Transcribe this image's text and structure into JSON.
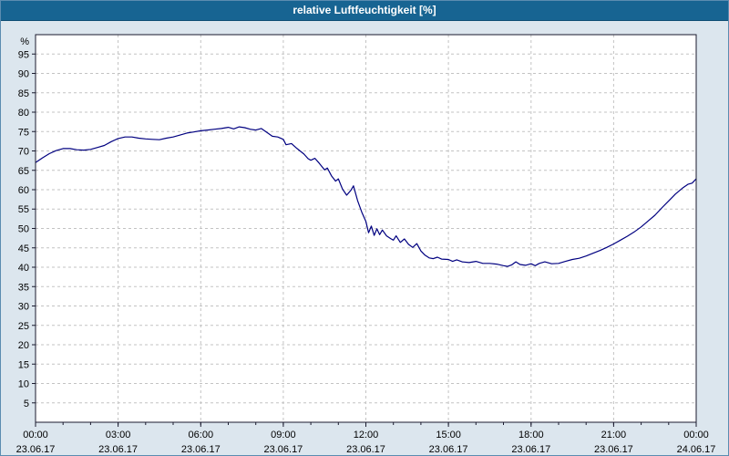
{
  "header": {
    "title": "relative Luftfeuchtigkeit [%]"
  },
  "chart_data": {
    "type": "line",
    "title": "relative Luftfeuchtigkeit [%]",
    "xlabel": "",
    "ylabel": "%",
    "ylim": [
      0,
      100
    ],
    "xlim_hours": [
      0,
      24
    ],
    "grid": {
      "horizontal_step": 5,
      "vertical_step_hours": 3,
      "style": "dashed"
    },
    "legend": "none",
    "y_ticks": [
      95,
      90,
      85,
      80,
      75,
      70,
      65,
      60,
      55,
      50,
      45,
      40,
      35,
      30,
      25,
      20,
      15,
      10,
      5
    ],
    "x_ticks": [
      {
        "hour": 0,
        "label": "00:00",
        "date": "23.06.17"
      },
      {
        "hour": 3,
        "label": "03:00",
        "date": "23.06.17"
      },
      {
        "hour": 6,
        "label": "06:00",
        "date": "23.06.17"
      },
      {
        "hour": 9,
        "label": "09:00",
        "date": "23.06.17"
      },
      {
        "hour": 12,
        "label": "12:00",
        "date": "23.06.17"
      },
      {
        "hour": 15,
        "label": "15:00",
        "date": "23.06.17"
      },
      {
        "hour": 18,
        "label": "18:00",
        "date": "23.06.17"
      },
      {
        "hour": 21,
        "label": "21:00",
        "date": "23.06.17"
      },
      {
        "hour": 24,
        "label": "00:00",
        "date": "24.06.17"
      }
    ],
    "colors": {
      "header_bg": "#176492",
      "header_text": "#ffffff",
      "background": "#dce6ee",
      "plot_background": "#ffffff",
      "grid": "#c3c3c3",
      "axis": "#1a1a2e",
      "line": "#000080",
      "text": "#000000"
    },
    "series": [
      {
        "name": "relative Luftfeuchtigkeit",
        "color": "#000080",
        "points": [
          [
            0,
            67
          ],
          [
            0.25,
            68.2
          ],
          [
            0.5,
            69.3
          ],
          [
            0.75,
            70.1
          ],
          [
            1,
            70.6
          ],
          [
            1.25,
            70.6
          ],
          [
            1.5,
            70.3
          ],
          [
            1.75,
            70.2
          ],
          [
            2,
            70.4
          ],
          [
            2.25,
            70.9
          ],
          [
            2.5,
            71.4
          ],
          [
            2.75,
            72.4
          ],
          [
            3,
            73.2
          ],
          [
            3.25,
            73.6
          ],
          [
            3.5,
            73.6
          ],
          [
            3.75,
            73.3
          ],
          [
            4,
            73.1
          ],
          [
            4.25,
            73.0
          ],
          [
            4.5,
            72.9
          ],
          [
            4.75,
            73.3
          ],
          [
            5,
            73.6
          ],
          [
            5.25,
            74.1
          ],
          [
            5.5,
            74.6
          ],
          [
            5.75,
            74.9
          ],
          [
            6,
            75.2
          ],
          [
            6.25,
            75.4
          ],
          [
            6.5,
            75.6
          ],
          [
            6.75,
            75.8
          ],
          [
            7,
            76.1
          ],
          [
            7.2,
            75.7
          ],
          [
            7.4,
            76.2
          ],
          [
            7.6,
            76.0
          ],
          [
            7.8,
            75.6
          ],
          [
            8,
            75.4
          ],
          [
            8.2,
            75.8
          ],
          [
            8.4,
            74.8
          ],
          [
            8.6,
            73.8
          ],
          [
            8.8,
            73.6
          ],
          [
            9,
            73.0
          ],
          [
            9.1,
            71.6
          ],
          [
            9.3,
            71.9
          ],
          [
            9.5,
            70.6
          ],
          [
            9.75,
            69.2
          ],
          [
            9.9,
            68.0
          ],
          [
            10,
            67.6
          ],
          [
            10.15,
            68.1
          ],
          [
            10.3,
            66.9
          ],
          [
            10.5,
            65.1
          ],
          [
            10.6,
            65.6
          ],
          [
            10.75,
            63.6
          ],
          [
            10.9,
            62.2
          ],
          [
            11,
            62.8
          ],
          [
            11.15,
            60.2
          ],
          [
            11.3,
            58.6
          ],
          [
            11.45,
            59.8
          ],
          [
            11.55,
            61.0
          ],
          [
            11.7,
            57.2
          ],
          [
            11.85,
            54.2
          ],
          [
            12,
            51.8
          ],
          [
            12.1,
            48.9
          ],
          [
            12.2,
            50.6
          ],
          [
            12.3,
            48.2
          ],
          [
            12.4,
            49.9
          ],
          [
            12.5,
            48.4
          ],
          [
            12.6,
            49.6
          ],
          [
            12.75,
            48.1
          ],
          [
            12.9,
            47.4
          ],
          [
            13,
            47.0
          ],
          [
            13.1,
            48.1
          ],
          [
            13.25,
            46.4
          ],
          [
            13.4,
            47.3
          ],
          [
            13.55,
            45.9
          ],
          [
            13.7,
            45.1
          ],
          [
            13.85,
            46.1
          ],
          [
            14,
            44.2
          ],
          [
            14.15,
            43.1
          ],
          [
            14.3,
            42.4
          ],
          [
            14.45,
            42.2
          ],
          [
            14.6,
            42.6
          ],
          [
            14.75,
            42.1
          ],
          [
            15,
            42.0
          ],
          [
            15.15,
            41.5
          ],
          [
            15.3,
            41.9
          ],
          [
            15.5,
            41.4
          ],
          [
            15.75,
            41.2
          ],
          [
            16,
            41.5
          ],
          [
            16.25,
            41.0
          ],
          [
            16.5,
            41.0
          ],
          [
            16.75,
            40.8
          ],
          [
            17,
            40.4
          ],
          [
            17.15,
            40.2
          ],
          [
            17.3,
            40.6
          ],
          [
            17.45,
            41.4
          ],
          [
            17.6,
            40.7
          ],
          [
            17.8,
            40.5
          ],
          [
            18,
            40.9
          ],
          [
            18.15,
            40.4
          ],
          [
            18.3,
            41.0
          ],
          [
            18.5,
            41.4
          ],
          [
            18.75,
            40.9
          ],
          [
            19,
            41.0
          ],
          [
            19.25,
            41.5
          ],
          [
            19.5,
            42.0
          ],
          [
            19.75,
            42.3
          ],
          [
            20,
            42.9
          ],
          [
            20.25,
            43.6
          ],
          [
            20.5,
            44.3
          ],
          [
            20.75,
            45.1
          ],
          [
            21,
            46.0
          ],
          [
            21.25,
            47.0
          ],
          [
            21.5,
            48.0
          ],
          [
            21.75,
            49.1
          ],
          [
            22,
            50.4
          ],
          [
            22.25,
            51.9
          ],
          [
            22.5,
            53.4
          ],
          [
            22.75,
            55.3
          ],
          [
            23,
            57.1
          ],
          [
            23.25,
            58.9
          ],
          [
            23.5,
            60.4
          ],
          [
            23.7,
            61.4
          ],
          [
            23.85,
            61.7
          ],
          [
            24,
            62.8
          ]
        ]
      }
    ]
  }
}
